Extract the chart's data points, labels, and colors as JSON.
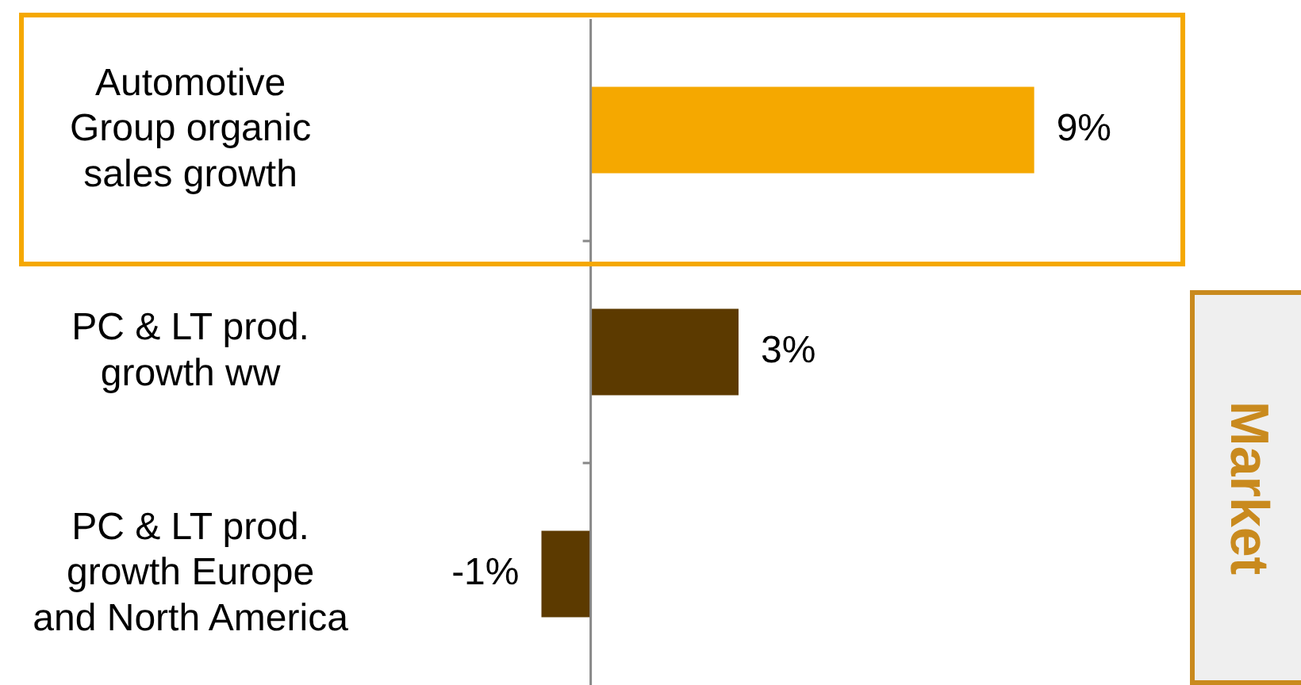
{
  "chart_data": {
    "type": "bar",
    "orientation": "horizontal",
    "categories": [
      "Automotive\nGroup organic\nsales growth",
      "PC & LT prod.\ngrowth ww",
      "PC & LT prod.\ngrowth Europe\nand North America"
    ],
    "values": [
      9,
      3,
      -1
    ],
    "colors": [
      "#f5a800",
      "#5c3a00",
      "#5c3a00"
    ],
    "value_labels": [
      "9%",
      "3%",
      "-1%"
    ],
    "tick_labels": "y",
    "grid": false,
    "legend": false,
    "annotations": [
      "Market"
    ]
  }
}
